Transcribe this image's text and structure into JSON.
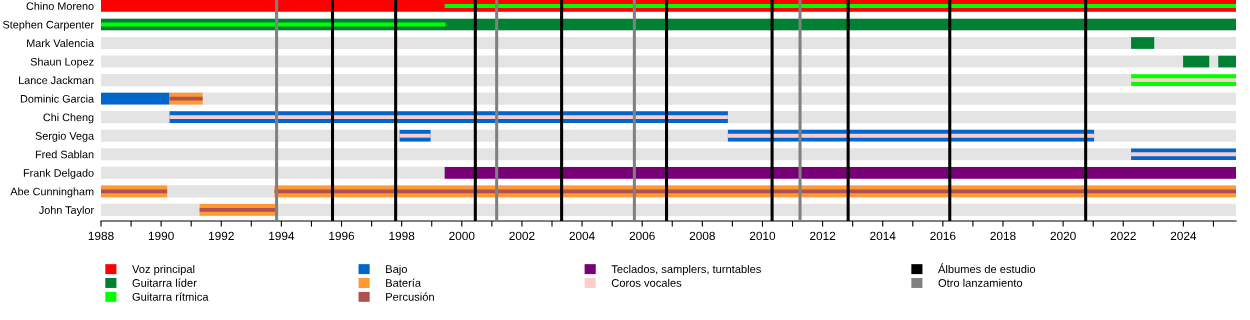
{
  "chart_data": {
    "type": "bar",
    "orientation": "horizontal",
    "categories": [
      "Chino Moreno",
      "Stephen Carpenter",
      "Mark Valencia",
      "Shaun Lopez",
      "Lance Jackman",
      "Dominic Garcia",
      "Chi Cheng",
      "Sergio Vega",
      "Fred Sablan",
      "Frank Delgado",
      "Abe Cunningham",
      "John Taylor"
    ],
    "series": [
      {
        "name": "Voz principal",
        "color": "#ff0000",
        "base": [
          1988,
          null,
          null,
          null,
          null,
          null,
          null,
          null,
          null,
          null,
          null,
          null
        ],
        "values": [
          37.75,
          null,
          null,
          null,
          null,
          null,
          null,
          null,
          null,
          null,
          null,
          null
        ]
      },
      {
        "name": "Guitarra líder",
        "color": "#008033",
        "base": [
          null,
          1988,
          2022.26,
          2023.99,
          null,
          null,
          null,
          null,
          null,
          null,
          null,
          null
        ],
        "values": [
          null,
          37.75,
          0.77,
          0.87,
          null,
          null,
          null,
          null,
          null,
          null,
          null,
          null
        ]
      },
      {
        "color": "#008033",
        "base": [
          null,
          null,
          null,
          2025.16,
          null,
          null,
          null,
          null,
          null,
          null,
          null,
          null
        ],
        "values": [
          null,
          null,
          null,
          0.59,
          null,
          null,
          null,
          null,
          null,
          null,
          null,
          null
        ]
      },
      {
        "name": "Guitarra rítmica",
        "color": "#00ff00",
        "base": [
          1999.43,
          1988,
          null,
          null,
          2022.26,
          null,
          null,
          null,
          null,
          null,
          null,
          null
        ],
        "values": [
          26.32,
          11.46,
          null,
          null,
          3.49,
          null,
          null,
          null,
          null,
          null,
          null,
          null
        ]
      },
      {
        "name": "Bajo",
        "color": "#0066cc",
        "base": [
          null,
          null,
          null,
          null,
          null,
          1988,
          1990.28,
          1997.93,
          2022.26,
          null,
          null,
          null
        ],
        "values": [
          null,
          null,
          null,
          null,
          null,
          2.28,
          18.57,
          1.03,
          3.49,
          null,
          null,
          null
        ]
      },
      {
        "color": "#0066cc",
        "base": [
          null,
          null,
          null,
          null,
          null,
          null,
          null,
          2008.85,
          null,
          null,
          null,
          null
        ],
        "values": [
          null,
          null,
          null,
          null,
          null,
          null,
          null,
          12.18,
          null,
          null,
          null,
          null
        ]
      },
      {
        "name": "Batería",
        "color": "#ff9933",
        "base": [
          null,
          null,
          null,
          null,
          null,
          1990.28,
          null,
          null,
          null,
          null,
          1988,
          1991.28
        ],
        "values": [
          null,
          null,
          null,
          null,
          null,
          1.1,
          null,
          null,
          null,
          null,
          2.2,
          2.53
        ]
      },
      {
        "color": "#ff9933",
        "base": [
          null,
          null,
          null,
          null,
          null,
          null,
          null,
          null,
          null,
          null,
          1993.77,
          null
        ],
        "values": [
          null,
          null,
          null,
          null,
          null,
          null,
          null,
          null,
          null,
          null,
          31.98,
          null
        ]
      },
      {
        "name": "Percusión",
        "color": "#b05050",
        "base": [
          null,
          null,
          null,
          null,
          null,
          1990.28,
          null,
          null,
          null,
          null,
          1988,
          1991.28
        ],
        "values": [
          null,
          null,
          null,
          null,
          null,
          1.1,
          null,
          null,
          null,
          null,
          2.2,
          2.53
        ]
      },
      {
        "color": "#b05050",
        "base": [
          null,
          null,
          null,
          null,
          null,
          null,
          null,
          null,
          null,
          null,
          1993.77,
          null
        ],
        "values": [
          null,
          null,
          null,
          null,
          null,
          null,
          null,
          null,
          null,
          null,
          31.98,
          null
        ]
      },
      {
        "name": "Teclados, samplers, turntables",
        "color": "#770077",
        "base": [
          null,
          null,
          null,
          null,
          null,
          null,
          null,
          null,
          null,
          1999.43,
          null,
          null
        ],
        "values": [
          null,
          null,
          null,
          null,
          null,
          null,
          null,
          null,
          null,
          26.32,
          null,
          null
        ]
      },
      {
        "name": "Coros vocales",
        "color": "#ffcccc",
        "base": [
          null,
          null,
          null,
          null,
          2022.26,
          null,
          1990.28,
          1997.93,
          2022.26,
          null,
          null,
          null
        ],
        "values": [
          null,
          null,
          null,
          null,
          3.49,
          null,
          18.57,
          1.03,
          3.49,
          null,
          null,
          null
        ]
      },
      {
        "color": "#ffcccc",
        "base": [
          null,
          null,
          null,
          null,
          null,
          null,
          null,
          2008.85,
          null,
          null,
          null,
          null
        ],
        "values": [
          null,
          null,
          null,
          null,
          null,
          null,
          null,
          12.18,
          null,
          null,
          null,
          null
        ]
      }
    ],
    "ref_lines": [
      {
        "axis": "x",
        "value": 1995.7,
        "label": "Álbumes de estudio",
        "color": "#000000"
      },
      {
        "axis": "x",
        "value": 1997.8,
        "color": "#000000"
      },
      {
        "axis": "x",
        "value": 2000.45,
        "color": "#000000"
      },
      {
        "axis": "x",
        "value": 2003.32,
        "color": "#000000"
      },
      {
        "axis": "x",
        "value": 2006.81,
        "color": "#000000"
      },
      {
        "axis": "x",
        "value": 2010.32,
        "color": "#000000"
      },
      {
        "axis": "x",
        "value": 2012.85,
        "color": "#000000"
      },
      {
        "axis": "x",
        "value": 2016.23,
        "color": "#000000"
      },
      {
        "axis": "x",
        "value": 2020.75,
        "color": "#000000"
      },
      {
        "axis": "x",
        "value": 1993.84,
        "label": "Otro lanzamiento",
        "color": "#808080"
      },
      {
        "axis": "x",
        "value": 2001.16,
        "color": "#808080"
      },
      {
        "axis": "x",
        "value": 2005.74,
        "color": "#808080"
      },
      {
        "axis": "x",
        "value": 2011.25,
        "color": "#808080"
      }
    ],
    "xlim": [
      1988,
      2025.75
    ],
    "xticks": [
      1988,
      {
        "value": 1989,
        "label": null
      },
      1990,
      {
        "value": 1991,
        "label": null
      },
      1992,
      {
        "value": 1993,
        "label": null
      },
      1994,
      {
        "value": 1995,
        "label": null
      },
      1996,
      {
        "value": 1997,
        "label": null
      },
      1998,
      {
        "value": 1999,
        "label": null
      },
      2000,
      {
        "value": 2001,
        "label": null
      },
      2002,
      {
        "value": 2003,
        "label": null
      },
      2004,
      {
        "value": 2005,
        "label": null
      },
      2006,
      {
        "value": 2007,
        "label": null
      },
      2008,
      {
        "value": 2009,
        "label": null
      },
      2010,
      {
        "value": 2011,
        "label": null
      },
      2012,
      {
        "value": 2013,
        "label": null
      },
      2014,
      {
        "value": 2015,
        "label": null
      },
      2016,
      {
        "value": 2017,
        "label": null
      },
      2018,
      {
        "value": 2019,
        "label": null
      },
      2020,
      {
        "value": 2021,
        "label": null
      },
      2022,
      {
        "value": 2023,
        "label": null
      },
      2024,
      {
        "value": 2025,
        "label": null
      }
    ],
    "grid": "y",
    "legend": "bottom"
  }
}
